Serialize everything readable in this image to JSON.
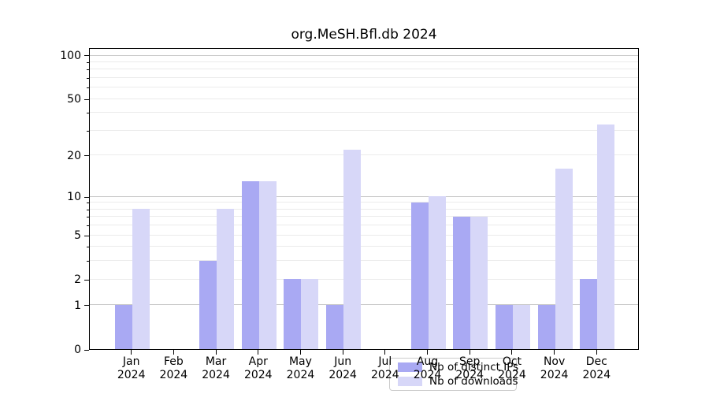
{
  "title": "org.MeSH.Bfl.db 2024",
  "chart_data": {
    "type": "bar",
    "title": "org.MeSH.Bfl.db 2024",
    "categories": [
      "Jan",
      "Feb",
      "Mar",
      "Apr",
      "May",
      "Jun",
      "Jul",
      "Aug",
      "Sep",
      "Oct",
      "Nov",
      "Dec"
    ],
    "category_year": "2024",
    "series": [
      {
        "name": "Nb of distinct IPs",
        "color": "#a9a9f3",
        "values": [
          1,
          0,
          3,
          13,
          2,
          1,
          0,
          9,
          7,
          1,
          1,
          2
        ]
      },
      {
        "name": "Nb of downloads",
        "color": "#d7d7f8",
        "values": [
          8,
          0,
          8,
          13,
          2,
          22,
          0,
          10,
          7,
          1,
          16,
          33
        ]
      }
    ],
    "y_scale": "log1p",
    "y_ticks": [
      0,
      1,
      2,
      5,
      10,
      20,
      50,
      100
    ],
    "y_major_gridlines": [
      1,
      10,
      100
    ],
    "y_minor_gridlines": [
      2,
      3,
      4,
      5,
      6,
      7,
      8,
      9,
      20,
      30,
      40,
      50,
      60,
      70,
      80,
      90
    ],
    "ylim": [
      0,
      113.3
    ],
    "xlim_padding_slots": 13,
    "grid": true,
    "legend_position": "lower-center",
    "colors": {
      "major_grid": "#c9c9c9",
      "minor_grid": "#ebebeb",
      "axis": "#000000"
    }
  }
}
